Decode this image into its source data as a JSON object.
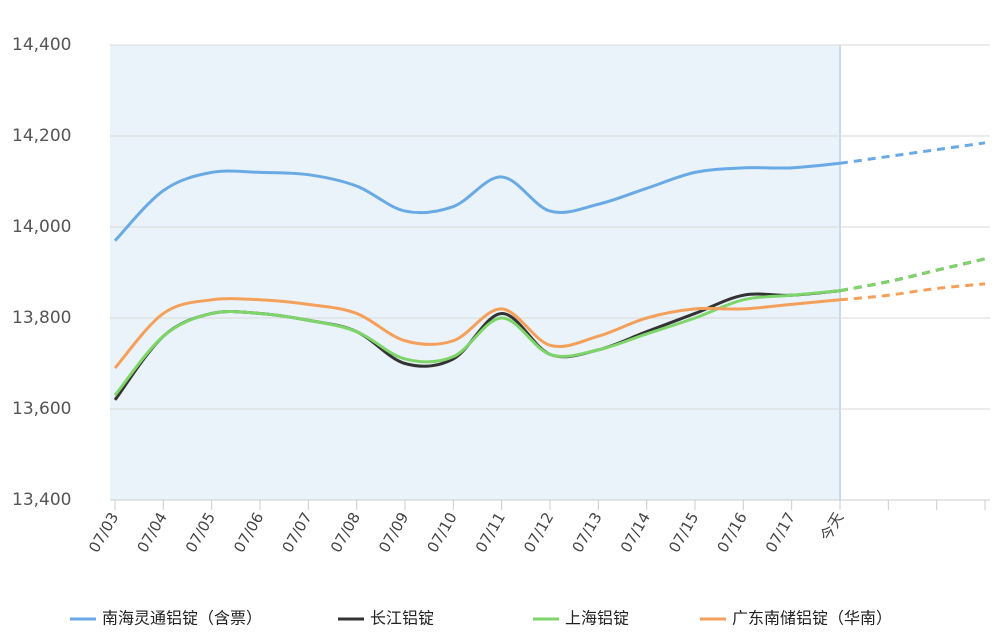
{
  "chart_data": {
    "type": "line",
    "categories": [
      "07/03",
      "07/04",
      "07/05",
      "07/06",
      "07/07",
      "07/08",
      "07/09",
      "07/10",
      "07/11",
      "07/12",
      "07/13",
      "07/14",
      "07/15",
      "07/16",
      "07/17",
      "今天",
      null,
      null,
      null
    ],
    "series": [
      {
        "name": "南海灵通铝锭（含票）",
        "color": "#6aaae4",
        "values": [
          13970,
          14080,
          14120,
          14120,
          14115,
          14090,
          14035,
          14045,
          14110,
          14035,
          14050,
          14085,
          14120,
          14130,
          14130,
          14140,
          14155,
          14170,
          14185
        ]
      },
      {
        "name": "长江铝锭",
        "color": "#333333",
        "values": [
          13620,
          13760,
          13810,
          13810,
          13795,
          13770,
          13700,
          13710,
          13810,
          13720,
          13730,
          13770,
          13810,
          13850,
          13850,
          13860,
          13880,
          13905,
          13930
        ]
      },
      {
        "name": "上海铝锭",
        "color": "#7ed66a",
        "values": [
          13630,
          13760,
          13810,
          13810,
          13795,
          13770,
          13710,
          13715,
          13800,
          13720,
          13730,
          13765,
          13800,
          13840,
          13850,
          13860,
          13880,
          13905,
          13930
        ]
      },
      {
        "name": "广东南储铝锭（华南）",
        "color": "#f5a05a",
        "values": [
          13690,
          13810,
          13840,
          13840,
          13830,
          13810,
          13750,
          13750,
          13820,
          13740,
          13760,
          13800,
          13820,
          13820,
          13830,
          13840,
          13850,
          13865,
          13875
        ]
      }
    ],
    "ylim": [
      13400,
      14400
    ],
    "yticks": [
      {
        "value": 13400,
        "label": "13,400"
      },
      {
        "value": 13600,
        "label": "13,600"
      },
      {
        "value": 13800,
        "label": "13,800"
      },
      {
        "value": 14000,
        "label": "14,000"
      },
      {
        "value": 14200,
        "label": "14,200"
      },
      {
        "value": 14400,
        "label": "14,400"
      }
    ],
    "grid": true
  }
}
